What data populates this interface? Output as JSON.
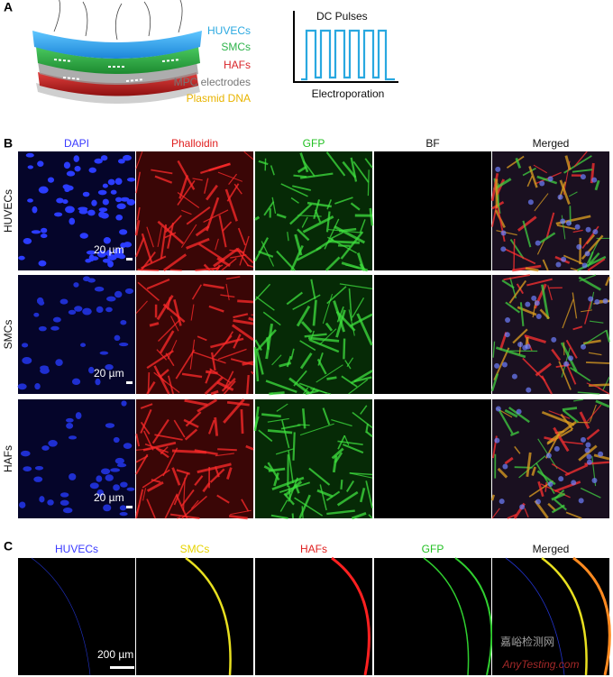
{
  "panel_a": {
    "label": "A",
    "layers": [
      "HUVECs",
      "SMCs",
      "HAFs",
      "MPC electrodes",
      "Plasmid DNA"
    ],
    "pulse_title": "DC Pulses",
    "pulse_caption": "Electroporation"
  },
  "panel_b": {
    "label": "B",
    "columns": [
      "DAPI",
      "Phalloidin",
      "GFP",
      "BF",
      "Merged"
    ],
    "rows": [
      {
        "label": "HUVECs",
        "scale_bar": "20 µm"
      },
      {
        "label": "SMCs",
        "scale_bar": "20 µm"
      },
      {
        "label": "HAFs",
        "scale_bar": "20 µm"
      }
    ]
  },
  "panel_c": {
    "label": "C",
    "columns": [
      "HUVECs",
      "SMCs",
      "HAFs",
      "GFP",
      "Merged"
    ],
    "scale_bar": "200 µm"
  },
  "watermark": {
    "title": "嘉峪检测网",
    "url": "AnyTesting.com"
  }
}
